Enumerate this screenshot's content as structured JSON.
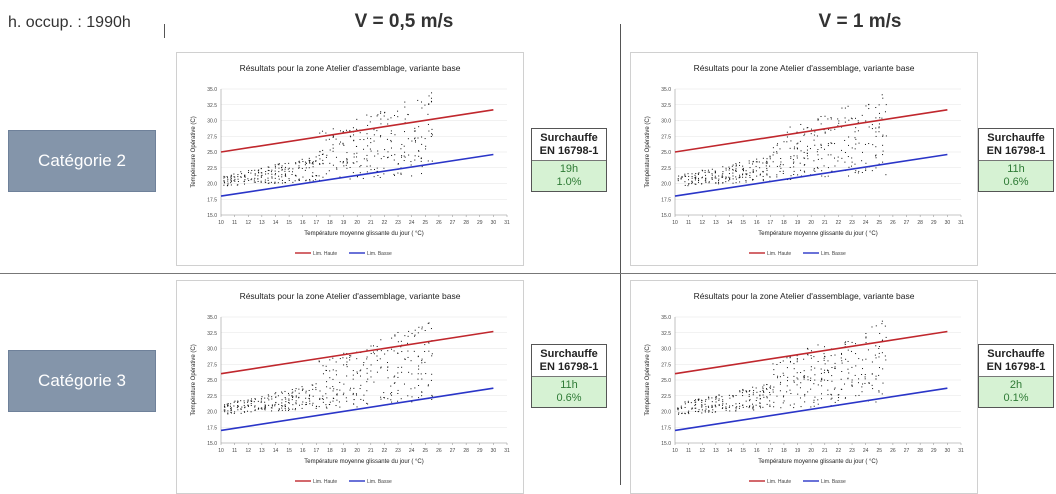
{
  "header": {
    "occupancy": "h. occup. : 1990h",
    "col1": "V = 0,5 m/s",
    "col2": "V = 1 m/s"
  },
  "rows": [
    {
      "category": "Catégorie 2"
    },
    {
      "category": "Catégorie 3"
    }
  ],
  "colors": {
    "upper_line": "#c0272d",
    "lower_line": "#2a35c8",
    "points": "#111111",
    "category_box": "#8495aa",
    "result_fill": "#d6f2d3",
    "result_text": "#2e7a35"
  },
  "panels": [
    {
      "surch_title": "Surchauffe",
      "surch_norm": "EN 16798-1",
      "hours": "19h",
      "pct": "1.0%"
    },
    {
      "surch_title": "Surchauffe",
      "surch_norm": "EN 16798-1",
      "hours": "11h",
      "pct": "0.6%"
    },
    {
      "surch_title": "Surchauffe",
      "surch_norm": "EN 16798-1",
      "hours": "11h",
      "pct": "0.6%"
    },
    {
      "surch_title": "Surchauffe",
      "surch_norm": "EN 16798-1",
      "hours": "2h",
      "pct": "0.1%"
    }
  ],
  "chart_data": [
    {
      "type": "scatter",
      "title": "Résultats pour la zone Atelier d'assemblage, variante base",
      "xlabel": "Température moyenne glissante du jour (  °C)",
      "ylabel": "Température Opérative (C)",
      "xlim": [
        10,
        31
      ],
      "ylim": [
        15,
        35
      ],
      "xticks": [
        "10",
        "11",
        "12",
        "13",
        "14",
        "15",
        "16",
        "17",
        "18",
        "19",
        "20",
        "21",
        "22",
        "23",
        "24",
        "25",
        "26",
        "27",
        "28",
        "29",
        "30",
        "31"
      ],
      "yticks": [
        "15.0",
        "17.5",
        "20.0",
        "22.5",
        "25.0",
        "27.5",
        "30.0",
        "32.5",
        "35.0"
      ],
      "series": [
        {
          "name": "Lim. Haute",
          "kind": "line",
          "x": [
            10,
            30
          ],
          "y": [
            25.0,
            31.7
          ]
        },
        {
          "name": "Lim. Basse",
          "kind": "line",
          "x": [
            10,
            30
          ],
          "y": [
            18.0,
            24.6
          ]
        }
      ],
      "cloud_seed": 11
    },
    {
      "type": "scatter",
      "title": "Résultats pour la zone Atelier d'assemblage, variante base",
      "xlabel": "Température moyenne glissante du jour (  °C)",
      "ylabel": "Température Opérative (C)",
      "xlim": [
        10,
        31
      ],
      "ylim": [
        15,
        35
      ],
      "xticks": [
        "10",
        "11",
        "12",
        "13",
        "14",
        "15",
        "16",
        "17",
        "18",
        "19",
        "20",
        "21",
        "22",
        "23",
        "24",
        "25",
        "26",
        "27",
        "28",
        "29",
        "30",
        "31"
      ],
      "yticks": [
        "15.0",
        "17.5",
        "20.0",
        "22.5",
        "25.0",
        "27.5",
        "30.0",
        "32.5",
        "35.0"
      ],
      "series": [
        {
          "name": "Lim. Haute",
          "kind": "line",
          "x": [
            10,
            30
          ],
          "y": [
            25.0,
            31.7
          ]
        },
        {
          "name": "Lim. Basse",
          "kind": "line",
          "x": [
            10,
            30
          ],
          "y": [
            18.0,
            24.6
          ]
        }
      ],
      "cloud_seed": 23
    },
    {
      "type": "scatter",
      "title": "Résultats pour la zone Atelier d'assemblage, variante base",
      "xlabel": "Température moyenne glissante du jour (  °C)",
      "ylabel": "Température Opérative (C)",
      "xlim": [
        10,
        31
      ],
      "ylim": [
        15,
        35
      ],
      "xticks": [
        "10",
        "11",
        "12",
        "13",
        "14",
        "15",
        "16",
        "17",
        "18",
        "19",
        "20",
        "21",
        "22",
        "23",
        "24",
        "25",
        "26",
        "27",
        "28",
        "29",
        "30",
        "31"
      ],
      "yticks": [
        "15.0",
        "17.5",
        "20.0",
        "22.5",
        "25.0",
        "27.5",
        "30.0",
        "32.5",
        "35.0"
      ],
      "series": [
        {
          "name": "Lim. Haute",
          "kind": "line",
          "x": [
            10,
            30
          ],
          "y": [
            26.0,
            32.7
          ]
        },
        {
          "name": "Lim. Basse",
          "kind": "line",
          "x": [
            10,
            30
          ],
          "y": [
            17.0,
            23.7
          ]
        }
      ],
      "cloud_seed": 37
    },
    {
      "type": "scatter",
      "title": "Résultats pour la zone Atelier d'assemblage, variante base",
      "xlabel": "Température moyenne glissante du jour (  °C)",
      "ylabel": "Température Opérative (C)",
      "xlim": [
        10,
        31
      ],
      "ylim": [
        15,
        35
      ],
      "xticks": [
        "10",
        "11",
        "12",
        "13",
        "14",
        "15",
        "16",
        "17",
        "18",
        "19",
        "20",
        "21",
        "22",
        "23",
        "24",
        "25",
        "26",
        "27",
        "28",
        "29",
        "30",
        "31"
      ],
      "yticks": [
        "15.0",
        "17.5",
        "20.0",
        "22.5",
        "25.0",
        "27.5",
        "30.0",
        "32.5",
        "35.0"
      ],
      "series": [
        {
          "name": "Lim. Haute",
          "kind": "line",
          "x": [
            10,
            30
          ],
          "y": [
            26.0,
            32.7
          ]
        },
        {
          "name": "Lim. Basse",
          "kind": "line",
          "x": [
            10,
            30
          ],
          "y": [
            17.0,
            23.7
          ]
        }
      ],
      "cloud_seed": 53
    }
  ]
}
